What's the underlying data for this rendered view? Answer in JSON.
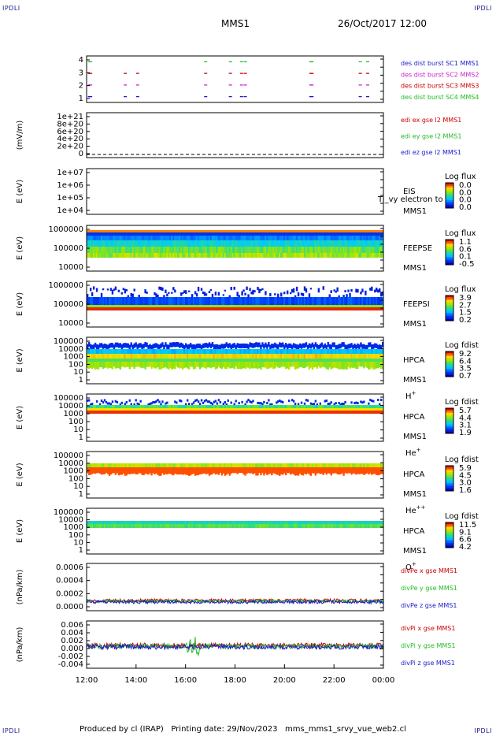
{
  "corners": {
    "tl": "IPDLI",
    "tr": "IPDLI",
    "bl": "IPDLI",
    "br": "IPDLI"
  },
  "header": {
    "mission": "MMS1",
    "datetime": "26/Oct/2017 12:00"
  },
  "footer": {
    "text": "Produced by cl (IRAP)   Printing date: 29/Nov/2023   mms_mms1_srvy_vue_web2.cl"
  },
  "time_axis": {
    "ticks": [
      "12:00",
      "14:00",
      "16:00",
      "18:00",
      "20:00",
      "22:00",
      "00:00"
    ]
  },
  "chart_data": [
    {
      "type": "scatter",
      "ylabel": "",
      "ytick_labels": [
        "4",
        "3",
        "2",
        "1"
      ],
      "ylim": [
        0.5,
        4.5
      ],
      "legend": [
        {
          "name": "des dist burst SC1 MMS1",
          "color": "#1a1acc"
        },
        {
          "name": "des dist burst SC2 MMS2",
          "color": "#cc22cc"
        },
        {
          "name": "des dist burst SC3 MMS3",
          "color": "#cc0000"
        },
        {
          "name": "des dist burst SC4 MMS4",
          "color": "#22bb22"
        }
      ],
      "series": [
        {
          "name": "SC4",
          "y": 4,
          "times": [
            12.05,
            12.1,
            16.75,
            17.75,
            18.2,
            18.35,
            21.0,
            21.05,
            23.0,
            23.3
          ],
          "color": "#22bb22"
        },
        {
          "name": "SC3",
          "y": 3,
          "times": [
            12.05,
            12.1,
            13.5,
            14.0,
            16.75,
            17.75,
            18.2,
            18.35,
            21.0,
            21.05,
            23.0,
            23.3
          ],
          "color": "#cc0000"
        },
        {
          "name": "SC2",
          "y": 2,
          "times": [
            12.05,
            12.1,
            13.5,
            14.0,
            16.75,
            17.75,
            18.2,
            18.35,
            21.0,
            21.05,
            23.0,
            23.3
          ],
          "color": "#cc22cc"
        },
        {
          "name": "SC1",
          "y": 1,
          "times": [
            12.05,
            12.1,
            13.5,
            14.0,
            16.75,
            17.75,
            18.2,
            18.35,
            21.0,
            21.05,
            23.0,
            23.3
          ],
          "color": "#1a1acc"
        }
      ]
    },
    {
      "type": "line",
      "ylabel": "(mV/m)",
      "ytick_labels": [
        "1e+21",
        "8e+20",
        "6e+20",
        "4e+20",
        "2e+20",
        "0"
      ],
      "ylim": [
        0,
        1e+21
      ],
      "legend": [
        {
          "name": "edi ex gse l2 MMS1",
          "color": "#cc0000"
        },
        {
          "name": "edi ey gse l2 MMS1",
          "color": "#22bb22"
        },
        {
          "name": "edi ez gse l2 MMS1",
          "color": "#1a1acc"
        }
      ]
    },
    {
      "type": "heatmap",
      "ylabel": "E (eV)",
      "ytick_labels": [
        "1e+07",
        "1e+06",
        "1e+05",
        "1e+04"
      ],
      "instrument": [
        "EIS",
        "MMS1"
      ],
      "overlay_text": "Ti_vy electron to",
      "colorbar": {
        "title": "Log flux",
        "ticks": [
          "0.0",
          "0.0",
          "0.0",
          "0.0"
        ]
      }
    },
    {
      "type": "heatmap",
      "ylabel": "E (eV)",
      "ytick_labels": [
        "1000000",
        "100000",
        "10000"
      ],
      "instrument": [
        "FEEPSE",
        "MMS1"
      ],
      "colorbar": {
        "title": "Log flux",
        "ticks": [
          "1.1",
          "0.6",
          "0.1",
          "-0.5"
        ]
      }
    },
    {
      "type": "heatmap",
      "ylabel": "E (eV)",
      "ytick_labels": [
        "1000000",
        "100000",
        "10000"
      ],
      "instrument": [
        "FEEPSI",
        "MMS1"
      ],
      "colorbar": {
        "title": "Log flux",
        "ticks": [
          "3.9",
          "2.7",
          "1.5",
          "0.2"
        ]
      }
    },
    {
      "type": "heatmap",
      "ylabel": "E (eV)",
      "ytick_labels": [
        "100000",
        "10000",
        "1000",
        "100",
        "10",
        "1"
      ],
      "instrument": [
        "HPCA",
        "MMS1"
      ],
      "species": "H",
      "charge": "+",
      "colorbar": {
        "title": "Log fdist",
        "ticks": [
          "9.2",
          "6.4",
          "3.5",
          "0.7"
        ]
      }
    },
    {
      "type": "heatmap",
      "ylabel": "E (eV)",
      "ytick_labels": [
        "100000",
        "10000",
        "1000",
        "100",
        "10",
        "1"
      ],
      "instrument": [
        "HPCA",
        "MMS1"
      ],
      "species": "He",
      "charge": "+",
      "colorbar": {
        "title": "Log fdist",
        "ticks": [
          "5.7",
          "4.4",
          "3.1",
          "1.9"
        ]
      }
    },
    {
      "type": "heatmap",
      "ylabel": "E (eV)",
      "ytick_labels": [
        "100000",
        "10000",
        "1000",
        "100",
        "10",
        "1"
      ],
      "instrument": [
        "HPCA",
        "MMS1"
      ],
      "species": "He",
      "charge": "++",
      "colorbar": {
        "title": "Log fdist",
        "ticks": [
          "5.9",
          "4.5",
          "3.0",
          "1.6"
        ]
      }
    },
    {
      "type": "heatmap",
      "ylabel": "E (eV)",
      "ytick_labels": [
        "100000",
        "10000",
        "1000",
        "100",
        "10",
        "1"
      ],
      "instrument": [
        "HPCA",
        "MMS1"
      ],
      "species": "O",
      "charge": "+",
      "colorbar": {
        "title": "Log fdist",
        "ticks": [
          "11.5",
          "9.1",
          "6.6",
          "4.2"
        ]
      }
    },
    {
      "type": "line",
      "ylabel": "(nPa/km)",
      "ytick_labels": [
        "0.0006",
        "0.0004",
        "0.0002",
        "0.0000"
      ],
      "ylim": [
        -0.0001,
        0.0007
      ],
      "legend": [
        {
          "name": "divPe x gse MMS1",
          "color": "#cc0000"
        },
        {
          "name": "divPe y gse MMS1",
          "color": "#22bb22"
        },
        {
          "name": "divPe z gse MMS1",
          "color": "#1a1acc"
        }
      ]
    },
    {
      "type": "line",
      "ylabel": "(nPa/km)",
      "ytick_labels": [
        "0.006",
        "0.004",
        "0.002",
        "0.000",
        "-0.002",
        "-0.004"
      ],
      "ylim": [
        -0.005,
        0.007
      ],
      "legend": [
        {
          "name": "divPi x gse MMS1",
          "color": "#cc0000"
        },
        {
          "name": "divPi y gse MMS1",
          "color": "#22bb22"
        },
        {
          "name": "divPi z gse MMS1",
          "color": "#1a1acc"
        }
      ]
    }
  ]
}
